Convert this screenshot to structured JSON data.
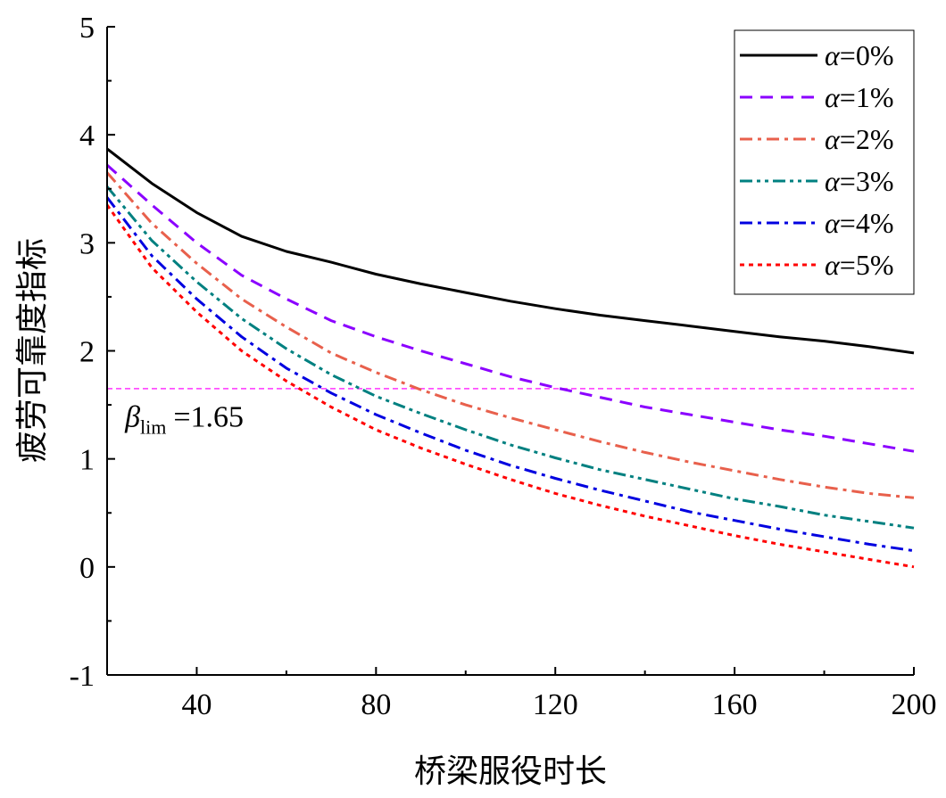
{
  "chart_data": {
    "type": "line",
    "title": "",
    "xlabel": "桥梁服役时长",
    "ylabel": "疲劳可靠度指标",
    "xlim": [
      20,
      200
    ],
    "ylim": [
      -1,
      5
    ],
    "xticks": [
      40,
      80,
      120,
      160,
      200
    ],
    "xtick_labels": [
      "40",
      "80",
      "120",
      "160",
      "200"
    ],
    "yticks": [
      -1,
      0,
      1,
      2,
      3,
      4,
      5
    ],
    "ytick_labels": [
      "-1",
      "0",
      "1",
      "2",
      "3",
      "4",
      "5"
    ],
    "x": [
      20,
      30,
      40,
      50,
      60,
      70,
      80,
      90,
      100,
      110,
      120,
      130,
      140,
      150,
      160,
      170,
      180,
      190,
      200
    ],
    "series": [
      {
        "name": "α=0%",
        "label_prefix": "α",
        "label_suffix": "=0%",
        "color": "#000000",
        "dash": "solid",
        "values": [
          3.87,
          3.55,
          3.28,
          3.06,
          2.92,
          2.82,
          2.71,
          2.62,
          2.54,
          2.46,
          2.39,
          2.33,
          2.28,
          2.23,
          2.18,
          2.13,
          2.09,
          2.04,
          1.98
        ]
      },
      {
        "name": "α=1%",
        "label_prefix": "α",
        "label_suffix": "=1%",
        "color": "#8b00ff",
        "dash": "dash",
        "values": [
          3.72,
          3.35,
          3.0,
          2.7,
          2.48,
          2.28,
          2.13,
          2.0,
          1.88,
          1.76,
          1.66,
          1.57,
          1.48,
          1.41,
          1.34,
          1.27,
          1.21,
          1.14,
          1.07
        ]
      },
      {
        "name": "α=2%",
        "label_prefix": "α",
        "label_suffix": "=2%",
        "color": "#e8604c",
        "dash": "dashdot",
        "values": [
          3.65,
          3.18,
          2.81,
          2.48,
          2.22,
          1.98,
          1.8,
          1.64,
          1.5,
          1.38,
          1.27,
          1.16,
          1.06,
          0.97,
          0.89,
          0.81,
          0.74,
          0.68,
          0.64
        ]
      },
      {
        "name": "α=3%",
        "label_prefix": "α",
        "label_suffix": "=3%",
        "color": "#008080",
        "dash": "dashdotdot",
        "values": [
          3.52,
          3.02,
          2.64,
          2.3,
          2.02,
          1.78,
          1.58,
          1.42,
          1.27,
          1.13,
          1.01,
          0.9,
          0.81,
          0.72,
          0.63,
          0.56,
          0.48,
          0.42,
          0.36
        ]
      },
      {
        "name": "α=4%",
        "label_prefix": "α",
        "label_suffix": "=4%",
        "color": "#0000e0",
        "dash": "dashdot",
        "values": [
          3.42,
          2.88,
          2.48,
          2.13,
          1.84,
          1.61,
          1.41,
          1.24,
          1.08,
          0.94,
          0.82,
          0.71,
          0.61,
          0.51,
          0.43,
          0.35,
          0.28,
          0.21,
          0.15
        ]
      },
      {
        "name": "α=5%",
        "label_prefix": "α",
        "label_suffix": "=5%",
        "color": "#ff0000",
        "dash": "dot",
        "values": [
          3.35,
          2.77,
          2.36,
          2.0,
          1.72,
          1.48,
          1.27,
          1.1,
          0.95,
          0.81,
          0.68,
          0.57,
          0.47,
          0.38,
          0.29,
          0.21,
          0.14,
          0.07,
          0.0
        ]
      }
    ],
    "reference_line": {
      "y": 1.65,
      "color": "#ff33ff"
    },
    "annotation": {
      "symbol": "β",
      "subscript": "lim",
      "text": "=1.65",
      "x": 24,
      "y": 1.3
    },
    "legend_position": "top-right",
    "grid": false
  }
}
